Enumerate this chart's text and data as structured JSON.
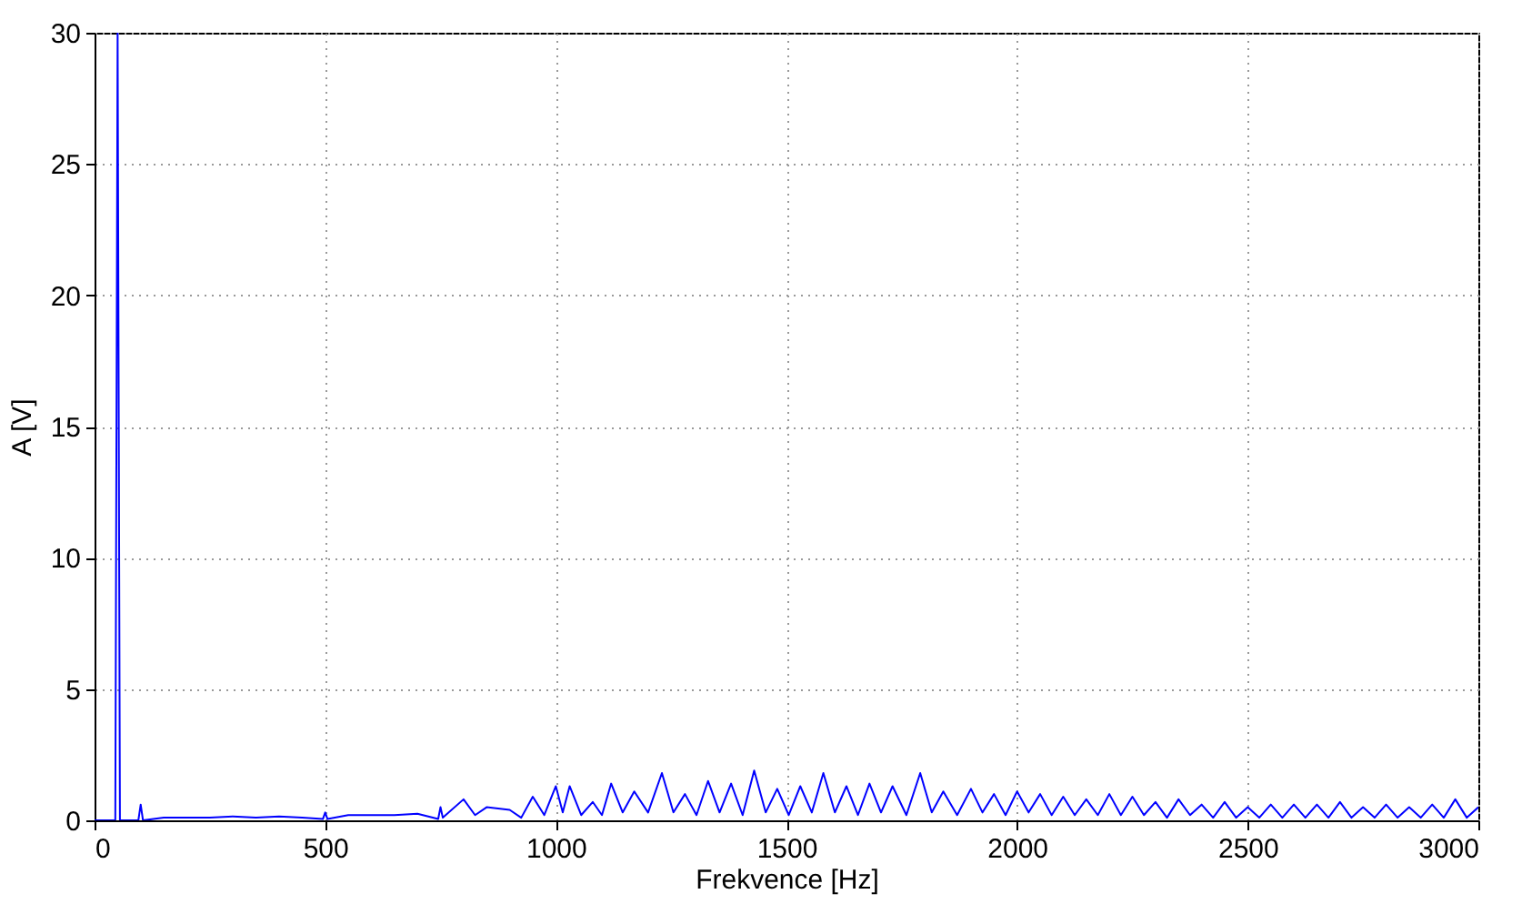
{
  "chart_data": {
    "type": "line",
    "xlabel": "Frekvence [Hz]",
    "ylabel": "A [V]",
    "x": [
      0,
      45,
      50,
      55,
      95,
      100,
      105,
      150,
      200,
      250,
      300,
      350,
      400,
      450,
      495,
      500,
      505,
      550,
      600,
      650,
      700,
      745,
      750,
      755,
      800,
      825,
      850,
      900,
      925,
      950,
      975,
      1000,
      1015,
      1030,
      1055,
      1080,
      1100,
      1120,
      1145,
      1170,
      1200,
      1230,
      1255,
      1280,
      1305,
      1330,
      1355,
      1380,
      1405,
      1430,
      1455,
      1480,
      1505,
      1530,
      1555,
      1580,
      1605,
      1630,
      1655,
      1680,
      1705,
      1730,
      1760,
      1790,
      1815,
      1840,
      1870,
      1900,
      1925,
      1950,
      1975,
      2000,
      2025,
      2050,
      2075,
      2100,
      2125,
      2150,
      2175,
      2200,
      2225,
      2250,
      2275,
      2300,
      2325,
      2350,
      2375,
      2400,
      2425,
      2450,
      2475,
      2500,
      2525,
      2550,
      2575,
      2600,
      2625,
      2650,
      2675,
      2700,
      2725,
      2750,
      2775,
      2800,
      2825,
      2850,
      2875,
      2900,
      2925,
      2950,
      2975,
      3000
    ],
    "series": [
      {
        "color": "#0000ff",
        "values": [
          0,
          0,
          30,
          0,
          0,
          0.6,
          0,
          0.1,
          0.1,
          0.1,
          0.15,
          0.1,
          0.15,
          0.1,
          0.05,
          0.3,
          0.05,
          0.2,
          0.2,
          0.2,
          0.25,
          0.05,
          0.5,
          0.1,
          0.8,
          0.2,
          0.5,
          0.4,
          0.1,
          0.9,
          0.2,
          1.3,
          0.3,
          1.3,
          0.2,
          0.7,
          0.2,
          1.4,
          0.3,
          1.1,
          0.3,
          1.8,
          0.3,
          1,
          0.2,
          1.5,
          0.3,
          1.4,
          0.2,
          1.9,
          0.3,
          1.2,
          0.2,
          1.3,
          0.3,
          1.8,
          0.3,
          1.3,
          0.2,
          1.4,
          0.3,
          1.3,
          0.2,
          1.8,
          0.3,
          1.1,
          0.2,
          1.2,
          0.3,
          1,
          0.2,
          1.1,
          0.3,
          1,
          0.2,
          0.9,
          0.2,
          0.8,
          0.2,
          1,
          0.2,
          0.9,
          0.2,
          0.7,
          0.1,
          0.8,
          0.2,
          0.6,
          0.1,
          0.7,
          0.1,
          0.5,
          0.1,
          0.6,
          0.1,
          0.6,
          0.1,
          0.6,
          0.1,
          0.7,
          0.1,
          0.5,
          0.1,
          0.6,
          0.1,
          0.5,
          0.1,
          0.6,
          0.1,
          0.8,
          0.1,
          0.5
        ]
      }
    ],
    "xlim": [
      0,
      3000
    ],
    "xticks": [
      0,
      500,
      1000,
      1500,
      2000,
      2500,
      3000
    ],
    "ylim": [
      0,
      30
    ],
    "yticks": [
      0,
      5,
      10,
      15,
      20,
      25,
      30
    ],
    "grid": true,
    "marker": "none",
    "line_style": "solid"
  }
}
